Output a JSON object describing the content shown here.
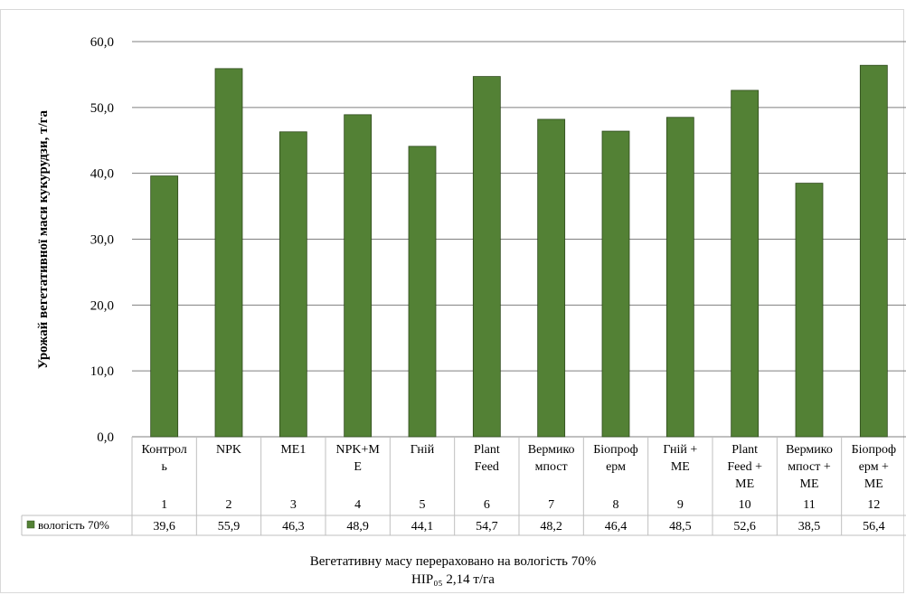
{
  "chart_data": {
    "type": "bar",
    "ylabel": "Урожай вегетативної маси кукурудзи, т/га",
    "ylim": [
      0,
      60
    ],
    "yticks": [
      "0,0",
      "10,0",
      "20,0",
      "30,0",
      "40,0",
      "50,0",
      "60,0"
    ],
    "grid": true,
    "bar_color": "#538135",
    "categories": [
      {
        "label": [
          "Контрол",
          "ь"
        ],
        "num": "1"
      },
      {
        "label": [
          "NPK"
        ],
        "num": "2"
      },
      {
        "label": [
          "МЕ1"
        ],
        "num": "3"
      },
      {
        "label": [
          "NPK+М",
          "Е"
        ],
        "num": "4"
      },
      {
        "label": [
          "Гній"
        ],
        "num": "5"
      },
      {
        "label": [
          "Plant",
          "Feed"
        ],
        "num": "6"
      },
      {
        "label": [
          "Вермико",
          "мпост"
        ],
        "num": "7"
      },
      {
        "label": [
          "Біопроф",
          "ерм"
        ],
        "num": "8"
      },
      {
        "label": [
          "Гній  +",
          "МЕ"
        ],
        "num": "9"
      },
      {
        "label": [
          "Plant",
          "Feed +",
          "МЕ"
        ],
        "num": "10"
      },
      {
        "label": [
          "Вермико",
          "мпост +",
          "МЕ"
        ],
        "num": "11"
      },
      {
        "label": [
          "Біопроф",
          "ерм +",
          "МЕ"
        ],
        "num": "12"
      }
    ],
    "series": [
      {
        "name": "вологість 70%",
        "values": [
          39.6,
          55.9,
          46.3,
          48.9,
          44.1,
          54.7,
          48.2,
          46.4,
          48.5,
          52.6,
          38.5,
          56.4
        ],
        "labels": [
          "39,6",
          "55,9",
          "46,3",
          "48,9",
          "44,1",
          "54,7",
          "48,2",
          "46,4",
          "48,5",
          "52,6",
          "38,5",
          "56,4"
        ]
      }
    ]
  },
  "notes": {
    "line1": "Вегетативну масу перераховано на вологість 70%",
    "line2": "НІР₀₅  2,14 т/га"
  }
}
